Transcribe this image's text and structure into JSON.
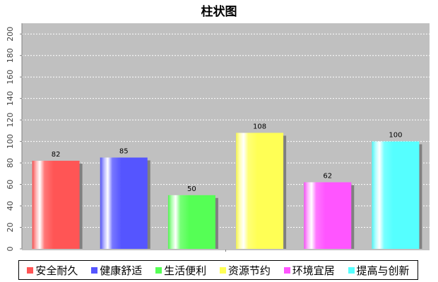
{
  "chart_data": {
    "type": "bar",
    "title": "柱状图",
    "categories": [
      "安全耐久",
      "健康舒适",
      "生活便利",
      "资源节约",
      "环境宜居",
      "提高与创新"
    ],
    "values": [
      82,
      85,
      50,
      108,
      62,
      100
    ],
    "value_labels": [
      "82",
      "85",
      "50",
      "108",
      "62",
      "100"
    ],
    "colors": [
      "#ff5555",
      "#5555ff",
      "#55ff55",
      "#ffff55",
      "#ff55ff",
      "#55ffff"
    ],
    "ylim": [
      0,
      210
    ],
    "yticks": [
      0,
      20,
      40,
      60,
      80,
      100,
      120,
      140,
      160,
      180,
      200
    ],
    "ytick_labels": [
      "0",
      "20",
      "40",
      "60",
      "80",
      "100",
      "120",
      "140",
      "160",
      "180",
      "200"
    ],
    "grid": true,
    "plot_background": "#c0c0c0",
    "legend_position": "bottom"
  }
}
